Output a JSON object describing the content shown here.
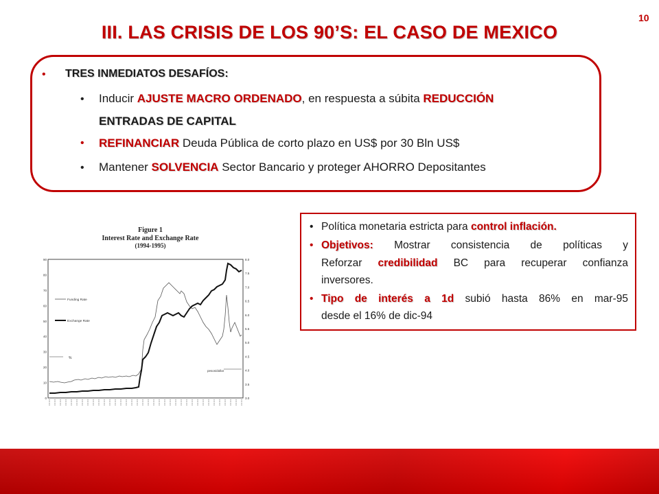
{
  "page_number": "10",
  "title": "III. LAS CRISIS DE LOS 90’S: EL CASO DE MEXICO",
  "challenges": {
    "heading": "TRES INMEDIATOS DESAFÍOS:",
    "item1": {
      "pre": "Inducir ",
      "em1": "AJUSTE MACRO ORDENADO",
      "mid": ", en respuesta a súbita ",
      "em2": "REDUCCIÓN",
      "em2_cont": "ENTRADAS DE CAPITAL"
    },
    "item2": {
      "em": "REFINANCIAR",
      "rest": " Deuda Pública de corto plazo en US$ por 30 Bln US$"
    },
    "item3": {
      "pre": "Mantener ",
      "em": "SOLVENCIA",
      "rest": " Sector Bancario y proteger AHORRO Depositantes"
    }
  },
  "figure": {
    "caption1": "Figure 1",
    "caption2": "Interest Rate and Exchange Rate",
    "caption3": "(1994-1995)",
    "legend_funding": "Funding Rate",
    "legend_exchange": "Exchange Rate",
    "label_pct": "%",
    "label_pesos": "pesos/dollar",
    "left_ticks": [
      "0",
      "10",
      "20",
      "30",
      "40",
      "50",
      "60",
      "70",
      "80",
      "90"
    ],
    "right_ticks": [
      "3.0",
      "3.5",
      "4.0",
      "4.5",
      "5.0",
      "5.5",
      "6.0",
      "6.5",
      "7.0",
      "7.5",
      "8.0"
    ]
  },
  "policy": {
    "b1_pre": "Política monetaria estricta para ",
    "b1_em": "control inflación.",
    "b2_em": "Objetivos:",
    "b2_l1": " Mostrar consistencia de políticas y",
    "b2_l2_pre": "Reforzar ",
    "b2_l2_em": "credibilidad",
    "b2_l2_rest": " BC para recuperar confianza",
    "b2_l3": "inversores.",
    "b3_em": "Tipo de interés a 1d",
    "b3_l1": " subió hasta 86% en mar-95",
    "b3_l2": "desde el 16% de dic-94"
  },
  "colors": {
    "accent": "#c00000",
    "footer": "#e00000"
  }
}
